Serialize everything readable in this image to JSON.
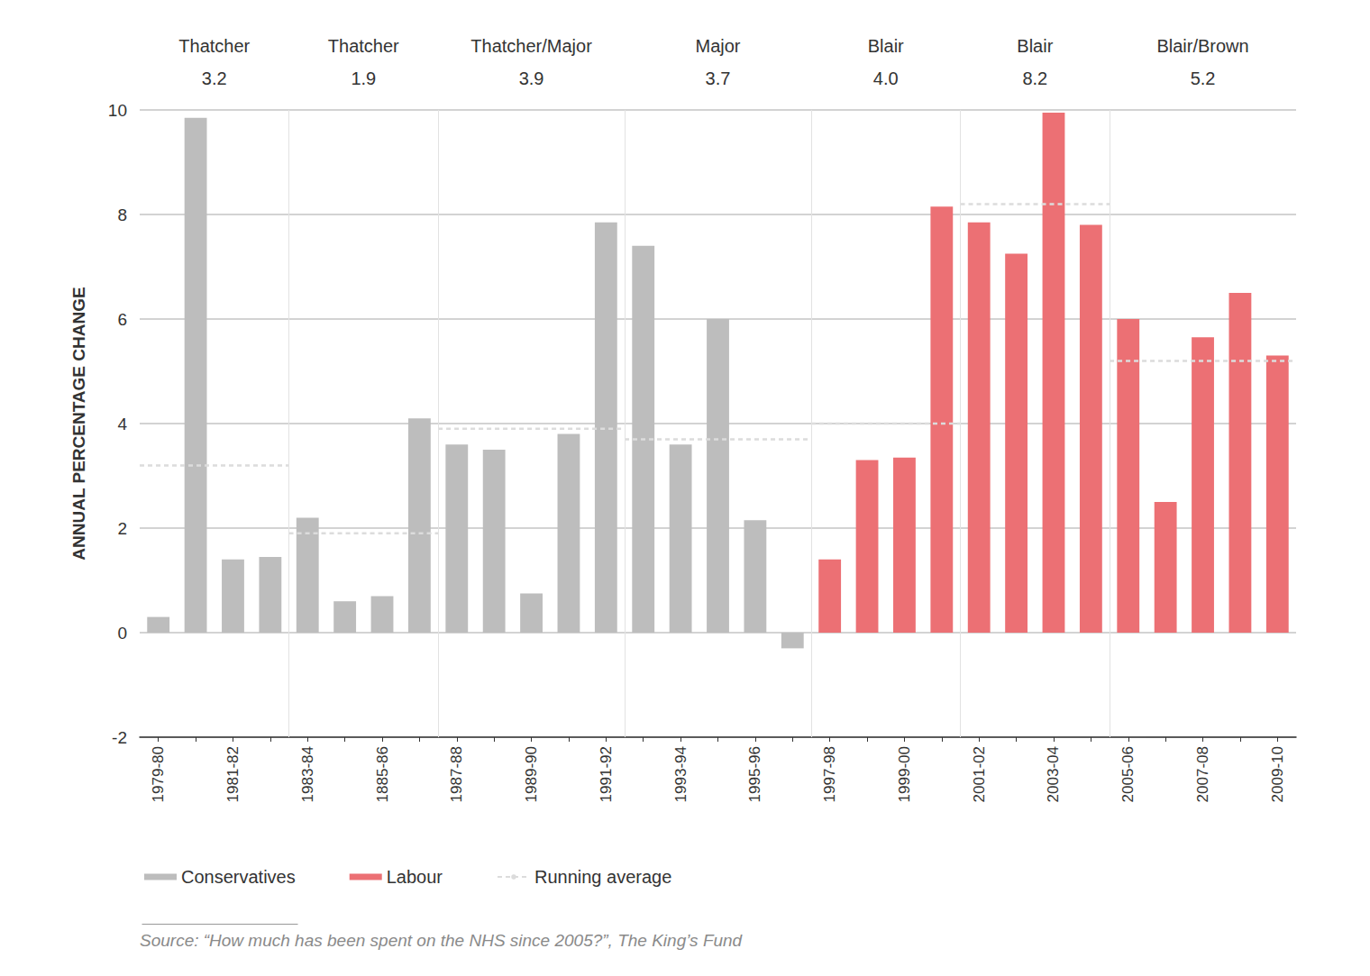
{
  "chart_data": {
    "type": "bar",
    "y_label": "ANNUAL PERCENTAGE CHANGE",
    "categories": [
      "1979-80",
      null,
      "1981-82",
      null,
      "1983-84",
      null,
      "1885-86",
      null,
      "1987-88",
      null,
      "1989-90",
      null,
      "1991-92",
      null,
      "1993-94",
      null,
      "1995-96",
      null,
      "1997-98",
      null,
      "1999-00",
      null,
      "2001-02",
      null,
      "2003-04",
      null,
      "2005-06",
      null,
      "2007-08",
      null,
      "2009-10"
    ],
    "series": [
      {
        "name": "Conservatives",
        "color": "#bdbdbd",
        "values": [
          0.3,
          9.85,
          1.4,
          1.45,
          2.2,
          0.6,
          0.7,
          4.1,
          3.6,
          3.5,
          0.75,
          3.8,
          7.85,
          7.4,
          3.6,
          6.0,
          2.15,
          -0.3,
          null,
          null,
          null,
          null,
          null,
          null,
          null,
          null,
          null,
          null,
          null,
          null,
          null
        ]
      },
      {
        "name": "Labour",
        "color": "#ec7074",
        "values": [
          null,
          null,
          null,
          null,
          null,
          null,
          null,
          null,
          null,
          null,
          null,
          null,
          null,
          null,
          null,
          null,
          null,
          null,
          1.4,
          3.3,
          3.35,
          8.15,
          7.85,
          7.25,
          9.95,
          7.8,
          6.0,
          2.5,
          5.65,
          6.5,
          5.3
        ]
      }
    ],
    "running_average": {
      "name": "Running average",
      "color": "#dcdcdc",
      "line_style": "dashed",
      "periods": [
        {
          "label": "Thatcher",
          "years": 4,
          "average": 3.2,
          "average_label": "3.2"
        },
        {
          "label": "Thatcher",
          "years": 4,
          "average": 1.9,
          "average_label": "1.9"
        },
        {
          "label": "Thatcher/Major",
          "years": 5,
          "average": 3.9,
          "average_label": "3.9"
        },
        {
          "label": "Major",
          "years": 5,
          "average": 3.7,
          "average_label": "3.7"
        },
        {
          "label": "Blair",
          "years": 4,
          "average": 4.0,
          "average_label": "4.0"
        },
        {
          "label": "Blair",
          "years": 4,
          "average": 8.2,
          "average_label": "8.2"
        },
        {
          "label": "Blair/Brown",
          "years": 5,
          "average": 5.2,
          "average_label": "5.2"
        }
      ]
    },
    "ylim": [
      -2,
      10
    ],
    "yticks": [
      -2,
      0,
      2,
      4,
      6,
      8,
      10
    ],
    "grid": true,
    "legend": "bottom left",
    "source": "Source: “How much has been spent on the NHS since 2005?”, The King’s Fund"
  }
}
